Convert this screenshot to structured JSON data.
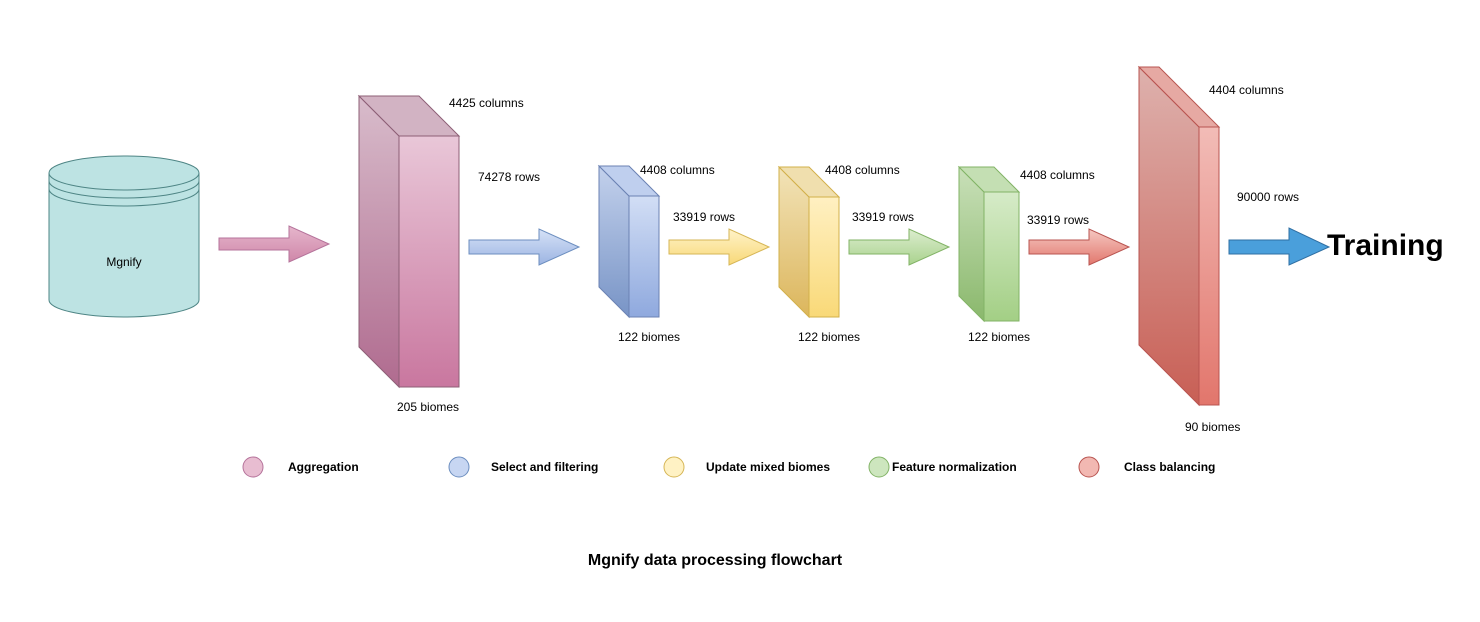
{
  "source": {
    "label": "Mgnify",
    "fill": "#bde3e3",
    "stroke": "#4e8585"
  },
  "stages": [
    {
      "key": "aggregation",
      "columns": "4425 columns",
      "rows": "74278 rows",
      "biomes": "205 biomes",
      "light": "#e9c7d8",
      "dark": "#c9779f",
      "side": "#b989a2",
      "stroke": "#8d5f76"
    },
    {
      "key": "select",
      "columns": "4408 columns",
      "rows": "33919 rows",
      "biomes": "122 biomes",
      "light": "#d2def5",
      "dark": "#8fa9de",
      "side": "#8ea2cd",
      "stroke": "#6b82b3"
    },
    {
      "key": "update",
      "columns": "4408 columns",
      "rows": "33919 rows",
      "biomes": "122 biomes",
      "light": "#fff0c2",
      "dark": "#f9d978",
      "side": "#e5c884",
      "stroke": "#d2b04a"
    },
    {
      "key": "normalize",
      "columns": "4408 columns",
      "rows": "33919 rows",
      "biomes": "122 biomes",
      "light": "#d6ebc8",
      "dark": "#a3cf85",
      "side": "#98be7e",
      "stroke": "#82b366"
    },
    {
      "key": "balance",
      "columns": "4404 columns",
      "rows": "90000 rows",
      "biomes": "90 biomes",
      "light": "#f2bcb7",
      "dark": "#e2766c",
      "side": "#cd8c84",
      "stroke": "#b85450"
    }
  ],
  "target": {
    "label": "Training",
    "arrow_fill": "#4a9fdb",
    "arrow_stroke": "#2f6fa3"
  },
  "legend": [
    {
      "label": "Aggregation",
      "fill": "#e8bdd1",
      "stroke": "#b5739b"
    },
    {
      "label": "Select and filtering",
      "fill": "#c7d6f2",
      "stroke": "#6c8ebf"
    },
    {
      "label": "Update mixed biomes",
      "fill": "#fff2c4",
      "stroke": "#d6b656"
    },
    {
      "label": "Feature normalization",
      "fill": "#cde6be",
      "stroke": "#82b366"
    },
    {
      "label": "Class balancing",
      "fill": "#f2b8b2",
      "stroke": "#b85450"
    }
  ],
  "caption": "Mgnify data processing flowchart"
}
